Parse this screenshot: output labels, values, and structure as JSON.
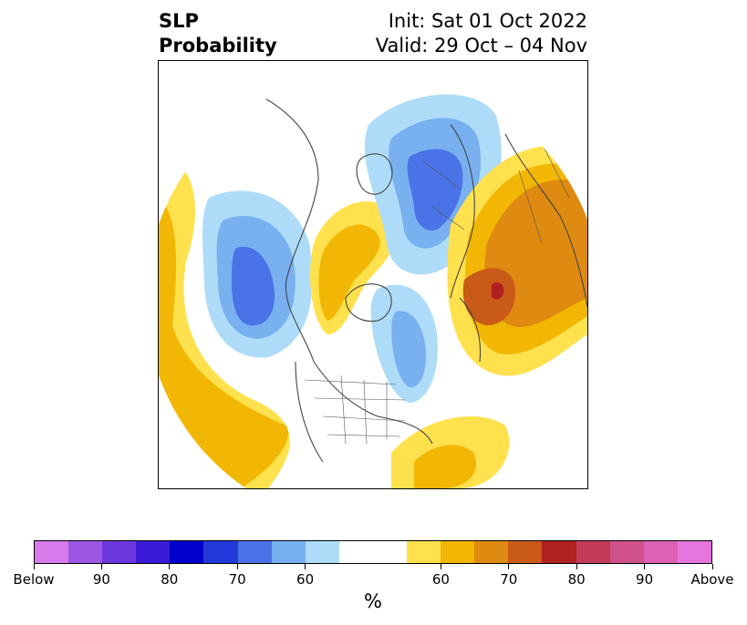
{
  "title": {
    "left_line1": "SLP",
    "left_line2": "Probability",
    "right_line1": "Init: Sat 01 Oct 2022",
    "right_line2": "Valid: 29 Oct – 04 Nov"
  },
  "colorbar": {
    "colors": [
      "#d67aec",
      "#9c56e3",
      "#6a37dc",
      "#3a1ad6",
      "#0000cc",
      "#2238d9",
      "#4a73e8",
      "#78b0f0",
      "#aedcf8",
      "#ffffff",
      "#ffffff",
      "#ffe14d",
      "#f2b705",
      "#df8a10",
      "#c95a18",
      "#b02020",
      "#c23c5a",
      "#cf508a",
      "#dd61b4",
      "#e676de"
    ],
    "labels": [
      "Below",
      "90",
      "80",
      "70",
      "60",
      "60",
      "70",
      "80",
      "90",
      "Above"
    ],
    "unit": "%"
  },
  "map": {
    "projection": "north-polar-stereographic",
    "field": "sea level pressure probability",
    "notable_regions": [
      {
        "name": "north-pacific-low",
        "category": "below",
        "peak_percent": 70
      },
      {
        "name": "eurasia-above",
        "category": "above",
        "peak_percent": 80
      },
      {
        "name": "siberia-below",
        "category": "below",
        "peak_percent": 70
      },
      {
        "name": "north-atlantic-above",
        "category": "above",
        "peak_percent": 60
      }
    ]
  }
}
